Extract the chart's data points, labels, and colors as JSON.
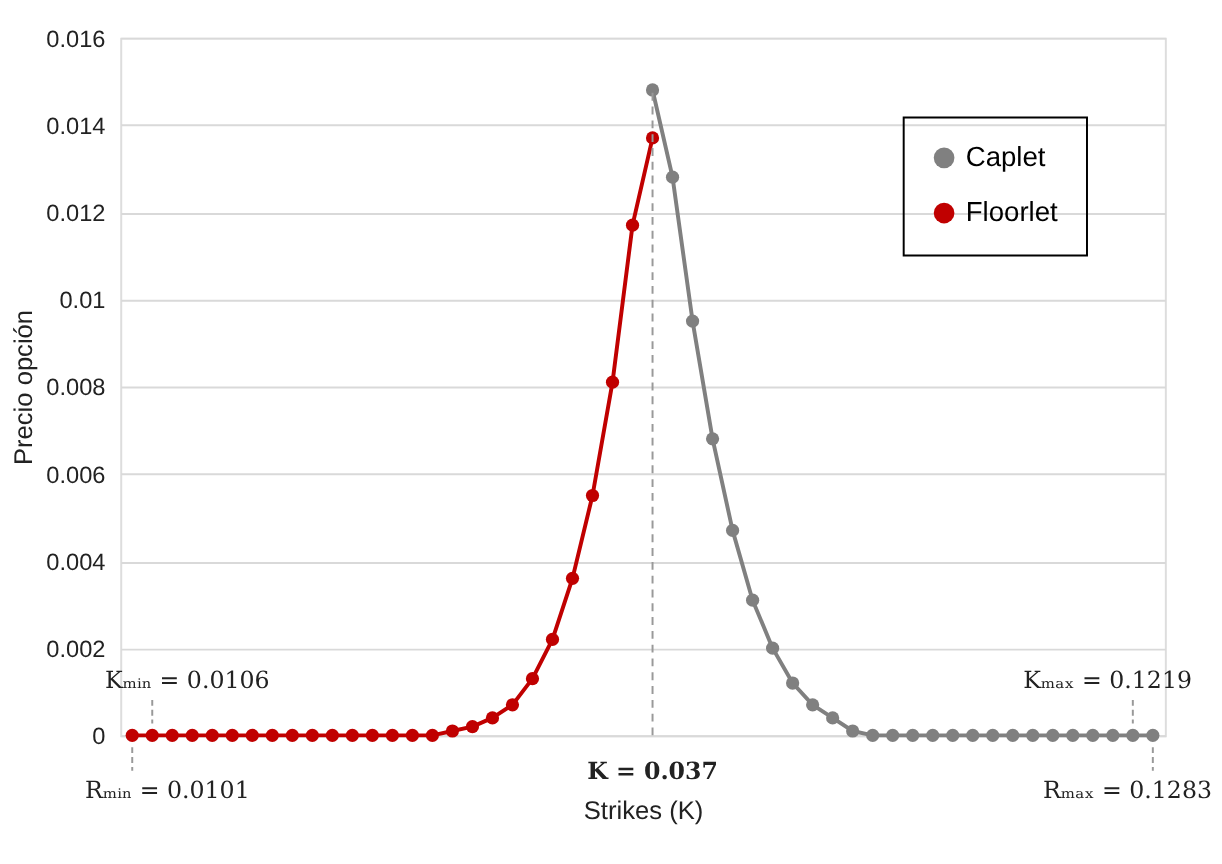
{
  "chart_data": {
    "type": "line",
    "xlabel": "Strikes (K)",
    "ylabel": "Precio opción",
    "categories": [
      null,
      null,
      null,
      null,
      null,
      null,
      null,
      null,
      null,
      null,
      null,
      null,
      null,
      null,
      null,
      null,
      null,
      null,
      null,
      null,
      null,
      null,
      null,
      null,
      null,
      null,
      null,
      null,
      null,
      null,
      null,
      null,
      null,
      null,
      null,
      null,
      null,
      null,
      null,
      null,
      null,
      null,
      null,
      null,
      null,
      null,
      null,
      null,
      null,
      null,
      null,
      null
    ],
    "series": [
      {
        "name": "Caplet",
        "color": "#808080",
        "values": [
          null,
          null,
          null,
          null,
          null,
          null,
          null,
          null,
          null,
          null,
          null,
          null,
          null,
          null,
          null,
          null,
          null,
          null,
          null,
          null,
          null,
          null,
          null,
          null,
          null,
          null,
          0.0148,
          0.0128,
          0.0095,
          0.0068,
          0.0047,
          0.0031,
          0.002,
          0.0012,
          0.0007,
          0.0004,
          0.0001,
          0,
          0,
          0,
          0,
          0,
          0,
          0,
          0,
          0,
          0,
          0,
          0,
          0,
          0,
          0
        ]
      },
      {
        "name": "Floorlet",
        "color": "#c00000",
        "values": [
          0,
          0,
          0,
          0,
          0,
          0,
          0,
          0,
          0,
          0,
          0,
          0,
          0,
          0,
          0,
          0,
          0.0001,
          0.0002,
          0.0004,
          0.0007,
          0.0013,
          0.0022,
          0.0036,
          0.0055,
          0.0081,
          0.0117,
          0.0137,
          null,
          null,
          null,
          null,
          null,
          null,
          null,
          null,
          null,
          null,
          null,
          null,
          null,
          null,
          null,
          null,
          null,
          null,
          null,
          null,
          null,
          null,
          null,
          null,
          null
        ]
      }
    ],
    "ylim": [
      0,
      0.016
    ],
    "yticks": [
      0,
      0.002,
      0.004,
      0.006,
      0.008,
      0.01,
      0.012,
      0.014,
      0.016
    ],
    "annotations": [
      "Kₘᵢₙ = 0.0106",
      "Rₘᵢₙ = 0.0101",
      "K = 0.037",
      "Kₘₐₓ = 0.1219",
      "Rₘₐₓ = 0.1283"
    ],
    "grid": "y",
    "legend": "top right",
    "marker": "circle",
    "line_style": "solid",
    "tick_labels": "y"
  }
}
